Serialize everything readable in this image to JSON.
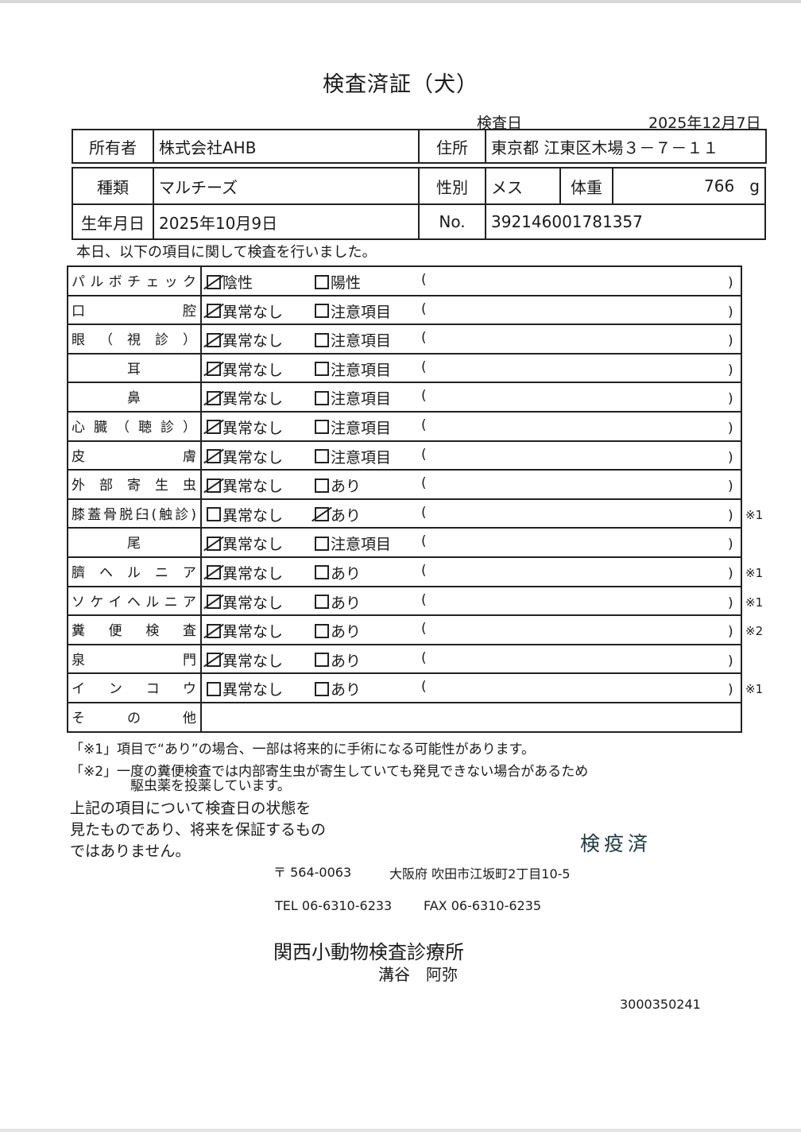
{
  "title": "検査済証（犬）",
  "exam_date": {
    "label": "検査日",
    "value": "2025年12月7日"
  },
  "owner": {
    "label": "所有者",
    "value": "株式会社AHB"
  },
  "address": {
    "label": "住所",
    "value": "東京都 江東区木場３－７－１１"
  },
  "breed": {
    "label": "種類",
    "value": "マルチーズ"
  },
  "sex": {
    "label": "性別",
    "value": "メス"
  },
  "weight": {
    "label": "体重",
    "value": "766",
    "unit": "g"
  },
  "birth": {
    "label": "生年月日",
    "value": "2025年10月9日"
  },
  "number": {
    "label": "No.",
    "value": "392146001781357"
  },
  "intro": "本日、以下の項目に関して検査を行いました。",
  "paren_open": "(",
  "paren_close": ")",
  "exam_rows": [
    {
      "label": "パルボチェック",
      "opt1": "陰性",
      "opt2": "陽性",
      "checked": 1,
      "note": ""
    },
    {
      "label": "口腔",
      "opt1": "異常なし",
      "opt2": "注意項目",
      "checked": 1,
      "note": ""
    },
    {
      "label": "眼（視診）",
      "opt1": "異常なし",
      "opt2": "注意項目",
      "checked": 1,
      "note": ""
    },
    {
      "label": "耳",
      "opt1": "異常なし",
      "opt2": "注意項目",
      "checked": 1,
      "note": ""
    },
    {
      "label": "鼻",
      "opt1": "異常なし",
      "opt2": "注意項目",
      "checked": 1,
      "note": ""
    },
    {
      "label": "心臓（聴診）",
      "opt1": "異常なし",
      "opt2": "注意項目",
      "checked": 1,
      "note": ""
    },
    {
      "label": "皮膚",
      "opt1": "異常なし",
      "opt2": "注意項目",
      "checked": 1,
      "note": ""
    },
    {
      "label": "外部寄生虫",
      "opt1": "異常なし",
      "opt2": "あり",
      "checked": 1,
      "note": ""
    },
    {
      "label": "膝蓋骨脱臼(触診)",
      "opt1": "異常なし",
      "opt2": "あり",
      "checked": 2,
      "note": "※1"
    },
    {
      "label": "尾",
      "opt1": "異常なし",
      "opt2": "注意項目",
      "checked": 1,
      "note": ""
    },
    {
      "label": "臍ヘルニア",
      "opt1": "異常なし",
      "opt2": "あり",
      "checked": 1,
      "note": "※1"
    },
    {
      "label": "ソケイヘルニア",
      "opt1": "異常なし",
      "opt2": "あり",
      "checked": 1,
      "note": "※1"
    },
    {
      "label": "糞便検査",
      "opt1": "異常なし",
      "opt2": "あり",
      "checked": 1,
      "note": "※2"
    },
    {
      "label": "泉門",
      "opt1": "異常なし",
      "opt2": "あり",
      "checked": 1,
      "note": ""
    },
    {
      "label": "インコウ",
      "opt1": "異常なし",
      "opt2": "あり",
      "checked": 0,
      "note": "※1"
    },
    {
      "label": "その他",
      "opt1": "",
      "opt2": "",
      "checked": 0,
      "note": ""
    }
  ],
  "footnotes": [
    "「※1」項目で“あり”の場合、一部は将来的に手術になる可能性があります。",
    "「※2」一度の糞便検査では内部寄生虫が寄生していても発見できない場合があるため",
    "駆虫薬を投薬しています。"
  ],
  "disclaimer": [
    "上記の項目について検査日の状態を",
    "見たものであり、将来を保証するもの",
    "ではありません。"
  ],
  "stamp": "検疫済",
  "clinic": {
    "postal": "〒 564-0063",
    "address": "大阪府 吹田市江坂町2丁目10-5",
    "tel": "TEL 06-6310-6233",
    "fax": "FAX 06-6310-6235",
    "name": "関西小動物検査診療所",
    "person": "溝谷　阿弥"
  },
  "serial": "3000350241",
  "colors": {
    "ink": "#1a1a1a",
    "stamp": "#1d3b44"
  }
}
